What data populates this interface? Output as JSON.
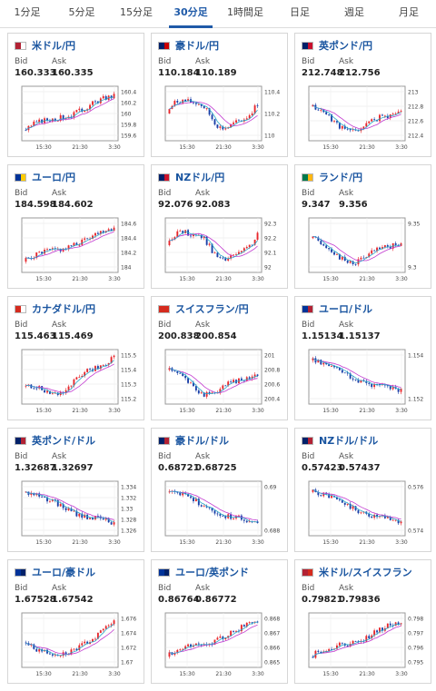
{
  "tabs": [
    {
      "label": "1分足",
      "active": false
    },
    {
      "label": "5分足",
      "active": false
    },
    {
      "label": "15分足",
      "active": false
    },
    {
      "label": "30分足",
      "active": true
    },
    {
      "label": "1時間足",
      "active": false
    },
    {
      "label": "日足",
      "active": false
    },
    {
      "label": "週足",
      "active": false
    },
    {
      "label": "月足",
      "active": false
    }
  ],
  "labels": {
    "bid": "Bid",
    "ask": "Ask"
  },
  "colors": {
    "up": "#e8262b",
    "down": "#1a3fa8",
    "ma1": "#c23ad0",
    "ma2": "#2aa7c9",
    "link": "#1a55a0"
  },
  "cards": [
    {
      "pair": "米ドル/円",
      "bid": "160.333",
      "ask": "160.335",
      "yticks": [
        "160.4",
        "160.2",
        "160",
        "159.8",
        "159.6"
      ],
      "xticks": [
        "15:30",
        "21:30",
        "3:30"
      ],
      "flag": [
        "#b22234",
        "#ffffff"
      ],
      "pattern": "up",
      "seed": 3
    },
    {
      "pair": "豪ドル/円",
      "bid": "110.184",
      "ask": "110.189",
      "yticks": [
        "110.4",
        "110.2",
        "110"
      ],
      "xticks": [
        "15:30",
        "21:30",
        "3:30"
      ],
      "flag": [
        "#012169",
        "#cc0000"
      ],
      "pattern": "wave",
      "seed": 7
    },
    {
      "pair": "英ポンド/円",
      "bid": "212.748",
      "ask": "212.756",
      "yticks": [
        "213",
        "212.8",
        "212.6",
        "212.4"
      ],
      "xticks": [
        "15:30",
        "21:30",
        "3:30"
      ],
      "flag": [
        "#012169",
        "#c8102e"
      ],
      "pattern": "dip",
      "seed": 11
    },
    {
      "pair": "ユーロ/円",
      "bid": "184.598",
      "ask": "184.602",
      "yticks": [
        "184.6",
        "184.4",
        "184.2",
        "184"
      ],
      "xticks": [
        "15:30",
        "21:30",
        "3:30"
      ],
      "flag": [
        "#003399",
        "#ffcc00"
      ],
      "pattern": "up",
      "seed": 5
    },
    {
      "pair": "NZドル/円",
      "bid": "92.076",
      "ask": "92.083",
      "yticks": [
        "92.3",
        "92.2",
        "92.1",
        "92"
      ],
      "xticks": [
        "15:30",
        "21:30",
        "3:30"
      ],
      "flag": [
        "#012169",
        "#cc142b"
      ],
      "pattern": "wave",
      "seed": 13
    },
    {
      "pair": "ランド/円",
      "bid": "9.347",
      "ask": "9.356",
      "yticks": [
        "9.35",
        "9.3"
      ],
      "xticks": [
        "15:30",
        "21:30",
        "3:30"
      ],
      "flag": [
        "#007a4d",
        "#ffb612"
      ],
      "pattern": "dip",
      "seed": 17
    },
    {
      "pair": "カナダドル/円",
      "bid": "115.463",
      "ask": "115.469",
      "yticks": [
        "115.5",
        "115.4",
        "115.3",
        "115.2"
      ],
      "xticks": [
        "15:30",
        "21:30",
        "3:30"
      ],
      "flag": [
        "#d52b1e",
        "#ffffff"
      ],
      "pattern": "updip",
      "seed": 19
    },
    {
      "pair": "スイスフラン/円",
      "bid": "200.838",
      "ask": "200.854",
      "yticks": [
        "201",
        "200.8",
        "200.6",
        "200.4"
      ],
      "xticks": [
        "15:30",
        "21:30",
        "3:30"
      ],
      "flag": [
        "#d52b1e",
        "#d52b1e"
      ],
      "pattern": "dip",
      "seed": 23
    },
    {
      "pair": "ユーロ/ドル",
      "bid": "1.15134",
      "ask": "1.15137",
      "yticks": [
        "1.154",
        "1.152"
      ],
      "xticks": [
        "15:30",
        "21:30",
        "3:30"
      ],
      "flag": [
        "#003399",
        "#b22234"
      ],
      "pattern": "down",
      "seed": 29
    },
    {
      "pair": "英ポンド/ドル",
      "bid": "1.32687",
      "ask": "1.32697",
      "yticks": [
        "1.334",
        "1.332",
        "1.33",
        "1.328",
        "1.326"
      ],
      "xticks": [
        "15:30",
        "21:30",
        "3:30"
      ],
      "flag": [
        "#012169",
        "#b22234"
      ],
      "pattern": "down",
      "seed": 31
    },
    {
      "pair": "豪ドル/ドル",
      "bid": "0.68721",
      "ask": "0.68725",
      "yticks": [
        "0.69",
        "0.688"
      ],
      "xticks": [
        "15:30",
        "21:30",
        "3:30"
      ],
      "flag": [
        "#012169",
        "#b22234"
      ],
      "pattern": "down",
      "seed": 37
    },
    {
      "pair": "NZドル/ドル",
      "bid": "0.57423",
      "ask": "0.57437",
      "yticks": [
        "0.576",
        "0.574"
      ],
      "xticks": [
        "15:30",
        "21:30",
        "3:30"
      ],
      "flag": [
        "#012169",
        "#b22234"
      ],
      "pattern": "down",
      "seed": 41
    },
    {
      "pair": "ユーロ/豪ドル",
      "bid": "1.67528",
      "ask": "1.67542",
      "yticks": [
        "1.676",
        "1.674",
        "1.672",
        "1.67"
      ],
      "xticks": [
        "15:30",
        "21:30",
        "3:30"
      ],
      "flag": [
        "#003399",
        "#012169"
      ],
      "pattern": "dipup",
      "seed": 43
    },
    {
      "pair": "ユーロ/英ポンド",
      "bid": "0.86764",
      "ask": "0.86772",
      "yticks": [
        "0.868",
        "0.867",
        "0.866",
        "0.865"
      ],
      "xticks": [
        "15:30",
        "21:30",
        "3:30"
      ],
      "flag": [
        "#003399",
        "#012169"
      ],
      "pattern": "up",
      "seed": 47
    },
    {
      "pair": "米ドル/スイスフラン",
      "bid": "0.79821",
      "ask": "0.79836",
      "yticks": [
        "0.798",
        "0.797",
        "0.796",
        "0.795"
      ],
      "xticks": [
        "15:30",
        "21:30",
        "3:30"
      ],
      "flag": [
        "#b22234",
        "#d52b1e"
      ],
      "pattern": "up",
      "seed": 53
    }
  ]
}
